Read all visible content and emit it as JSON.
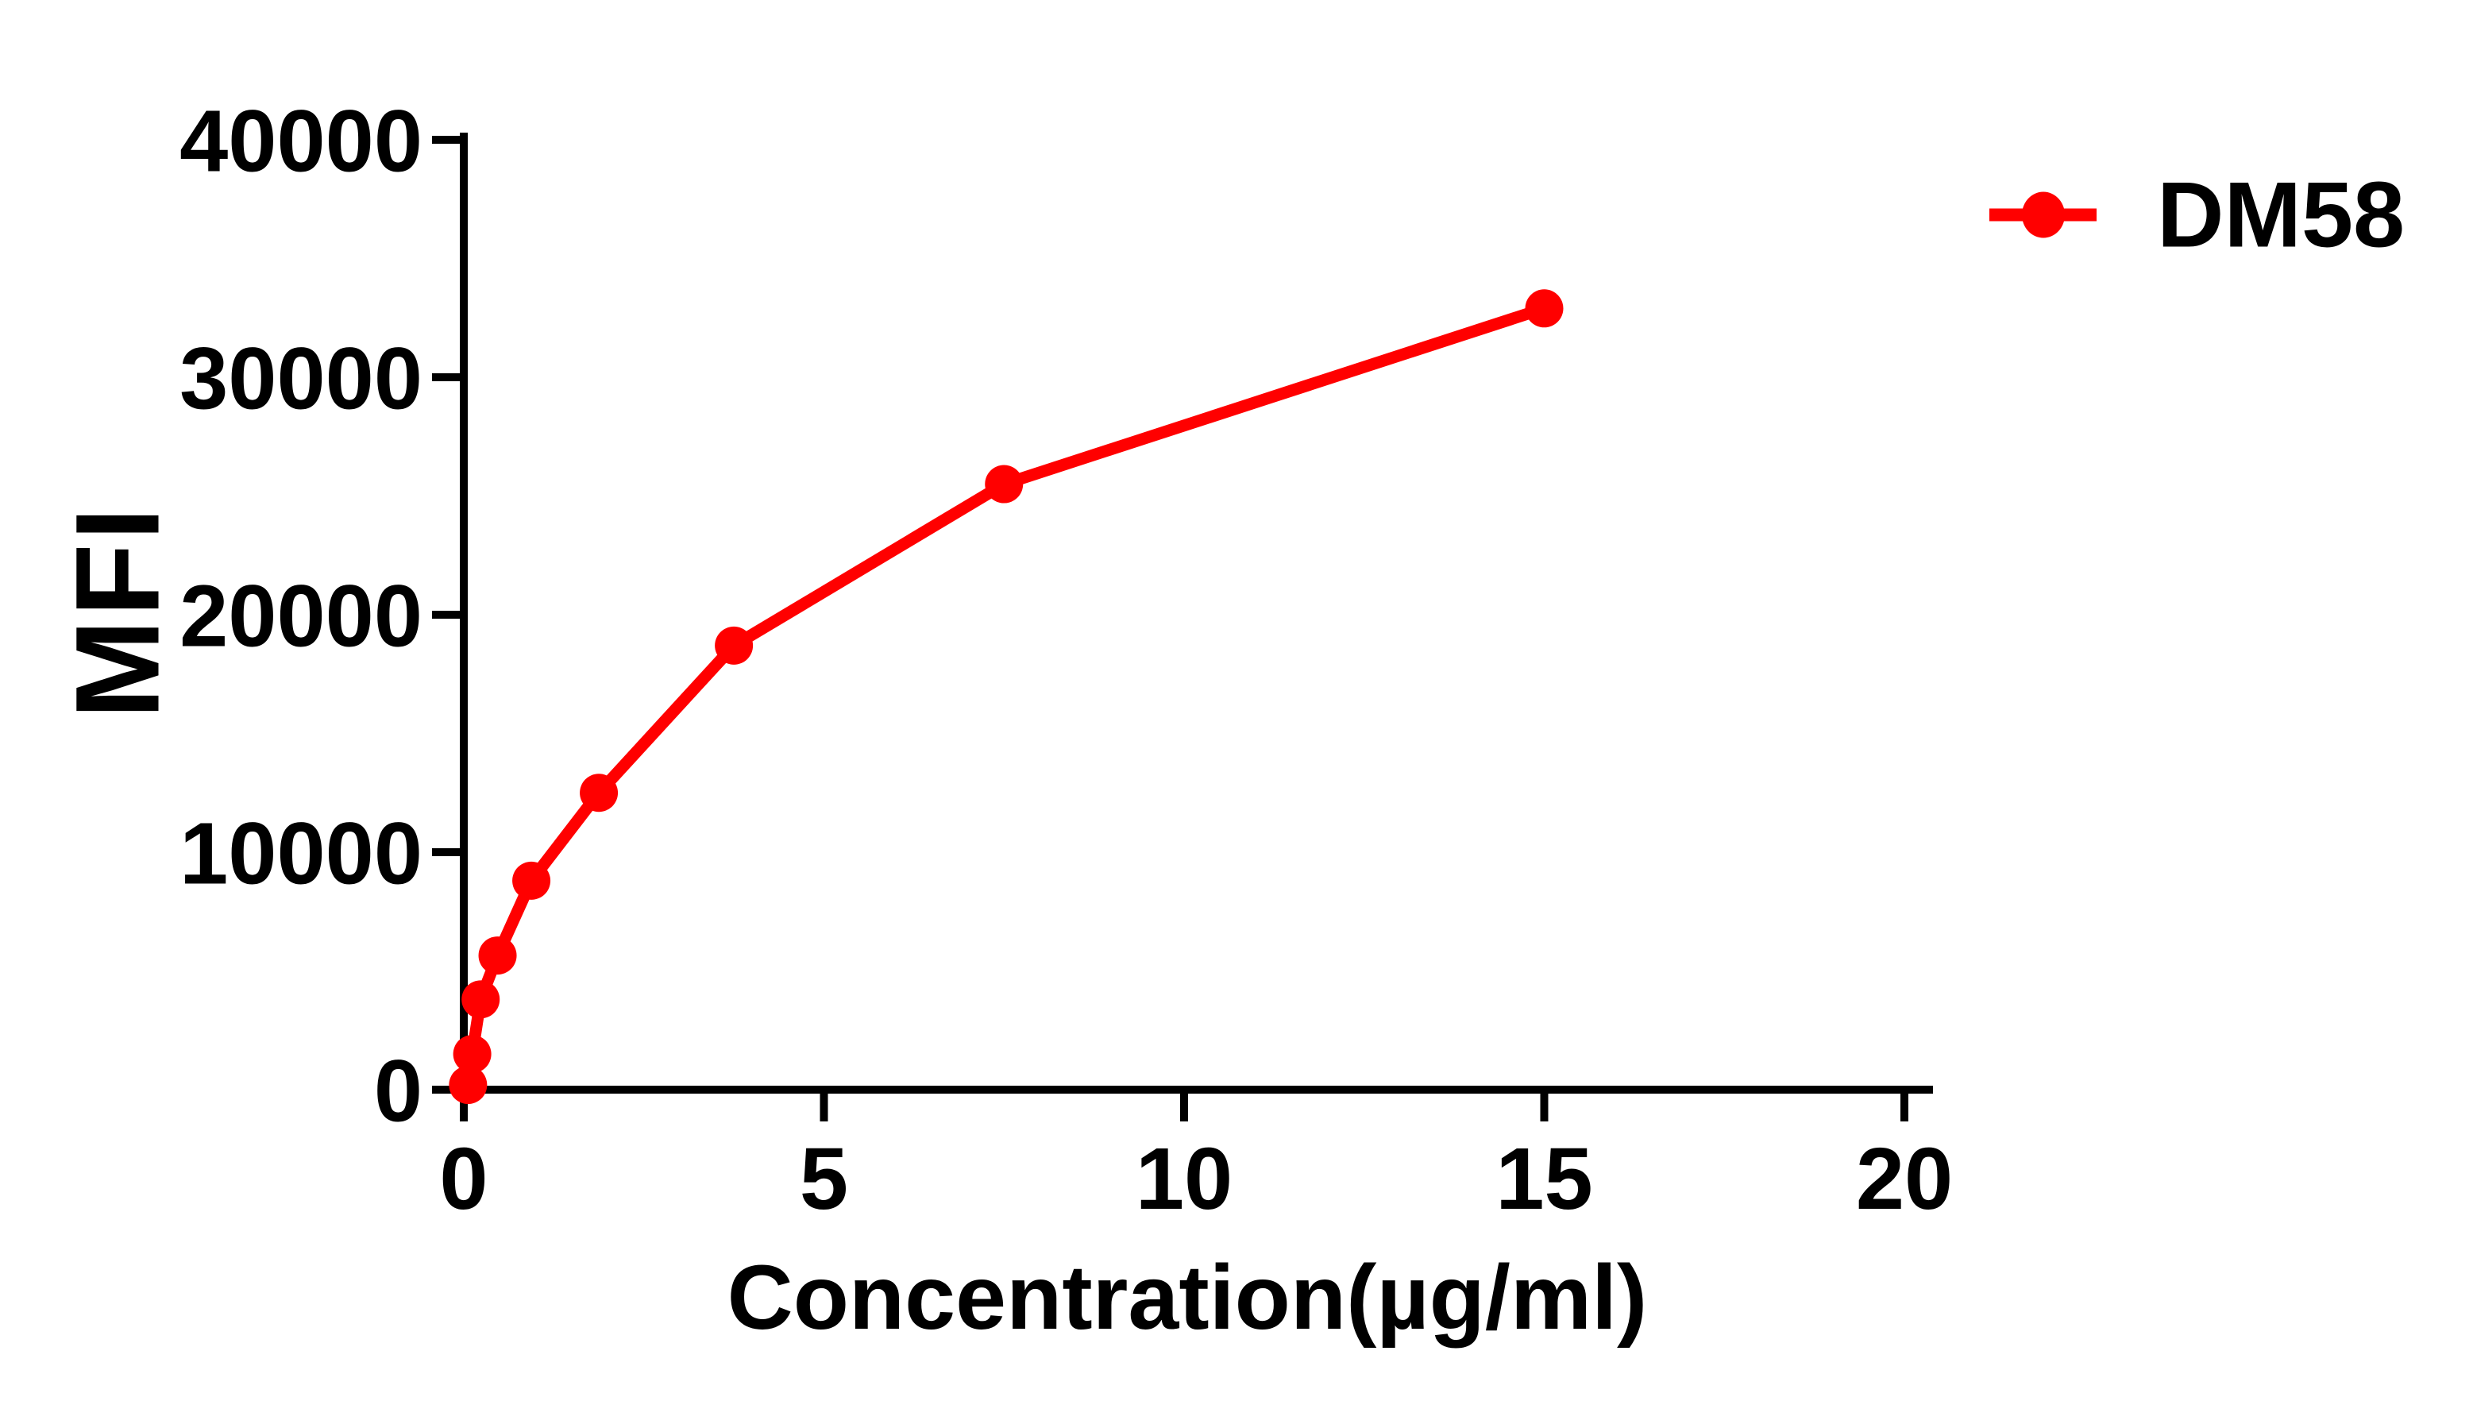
{
  "chart_data": {
    "type": "line",
    "title": "",
    "xlabel": "Concentration(µg/ml)",
    "ylabel": "MFI",
    "xlim": [
      0,
      20
    ],
    "ylim": [
      0,
      40000
    ],
    "x_ticks": [
      0,
      5,
      10,
      15,
      20
    ],
    "y_ticks": [
      0,
      10000,
      20000,
      30000,
      40000
    ],
    "grid": false,
    "legend_position": "top-right",
    "axis_color": "#000000",
    "series": [
      {
        "name": "DM58",
        "color": "#FF0000",
        "marker": "circle",
        "x": [
          0.059,
          0.117,
          0.234,
          0.469,
          0.938,
          1.875,
          3.75,
          7.5,
          15
        ],
        "y": [
          200,
          1500,
          3800,
          5650,
          8800,
          12500,
          18700,
          25500,
          32900
        ]
      }
    ]
  }
}
